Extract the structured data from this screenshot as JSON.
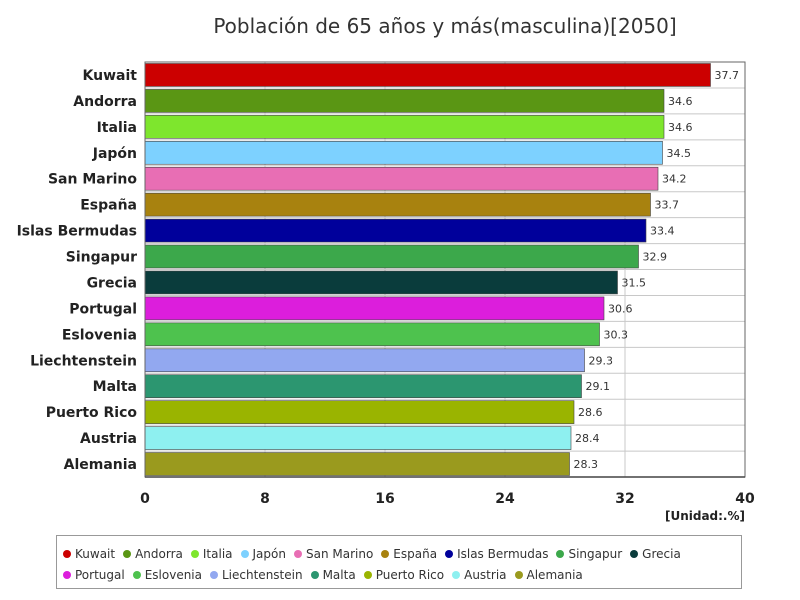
{
  "chart_data": {
    "type": "bar",
    "orientation": "horizontal",
    "title": "Población de 65 años y más(masculina)[2050]",
    "unit_label": "[Unidad:.%]",
    "categories": [
      "Kuwait",
      "Andorra",
      "Italia",
      "Japón",
      "San Marino",
      "España",
      "Islas Bermudas",
      "Singapur",
      "Grecia",
      "Portugal",
      "Eslovenia",
      "Liechtenstein",
      "Malta",
      "Puerto Rico",
      "Austria",
      "Alemania"
    ],
    "values": [
      37.7,
      34.6,
      34.6,
      34.5,
      34.2,
      33.7,
      33.4,
      32.9,
      31.5,
      30.6,
      30.3,
      29.3,
      29.1,
      28.6,
      28.4,
      28.3
    ],
    "value_labels": [
      "37.7",
      "34.6",
      "34.6",
      "34.5",
      "34.2",
      "33.7",
      "33.4",
      "32.9",
      "31.5",
      "30.6",
      "30.3",
      "29.3",
      "29.1",
      "28.6",
      "28.4",
      "28.3"
    ],
    "colors": [
      "#cc0000",
      "#5a9614",
      "#7ee62d",
      "#7dd1ff",
      "#e86eb4",
      "#a8820f",
      "#00009b",
      "#3ca84b",
      "#0a3c3c",
      "#dc1edc",
      "#4ec24e",
      "#92a8f0",
      "#2c9670",
      "#9ab400",
      "#8ef0f0",
      "#9a9a1e"
    ],
    "xlim": [
      0,
      40
    ],
    "xticks": [
      "0",
      "8",
      "16",
      "24",
      "32",
      "40"
    ],
    "grid": true,
    "legend_position": "bottom"
  }
}
